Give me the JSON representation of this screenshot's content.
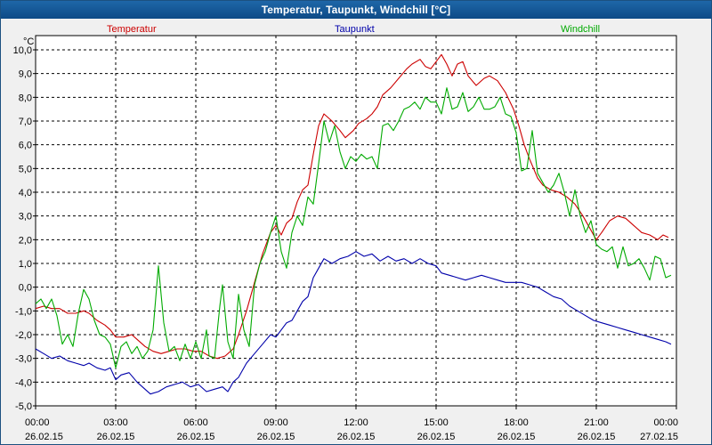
{
  "window": {
    "title": "Temperatur, Taupunkt, Windchill [°C]"
  },
  "chart_data": {
    "type": "line",
    "title": "Temperatur, Taupunkt, Windchill [°C]",
    "ylabel": "°C",
    "ylim": [
      -5,
      10
    ],
    "yticks": [
      10,
      9,
      8,
      7,
      6,
      5,
      4,
      3,
      2,
      1,
      0,
      -1,
      -2,
      -3,
      -4,
      -5
    ],
    "ytick_labels": [
      "10,0",
      "9,0",
      "8,0",
      "7,0",
      "6,0",
      "5,0",
      "4,0",
      "3,0",
      "2,0",
      "1,0",
      "0,0",
      "-1,0",
      "-2,0",
      "-3,0",
      "-4,0",
      "-5,0"
    ],
    "xlim": [
      0,
      24
    ],
    "xticks": [
      0,
      3,
      6,
      9,
      12,
      15,
      18,
      21,
      24
    ],
    "xtick_times": [
      "00:00",
      "03:00",
      "06:00",
      "09:00",
      "12:00",
      "15:00",
      "18:00",
      "21:00",
      "00:00"
    ],
    "xtick_dates": [
      "26.02.15",
      "26.02.15",
      "26.02.15",
      "26.02.15",
      "26.02.15",
      "26.02.15",
      "26.02.15",
      "26.02.15",
      "27.02.15"
    ],
    "grid": true,
    "series": [
      {
        "name": "Temperatur",
        "color": "#cc0000",
        "points": [
          [
            0,
            -0.9
          ],
          [
            0.3,
            -0.8
          ],
          [
            0.6,
            -0.9
          ],
          [
            0.9,
            -0.9
          ],
          [
            1.2,
            -1.1
          ],
          [
            1.5,
            -1.1
          ],
          [
            1.8,
            -1.0
          ],
          [
            2.0,
            -1.1
          ],
          [
            2.3,
            -1.4
          ],
          [
            2.6,
            -1.6
          ],
          [
            2.8,
            -1.8
          ],
          [
            3.0,
            -2.1
          ],
          [
            3.3,
            -2.1
          ],
          [
            3.6,
            -2.0
          ],
          [
            3.8,
            -2.2
          ],
          [
            4.1,
            -2.5
          ],
          [
            4.4,
            -2.7
          ],
          [
            4.7,
            -2.8
          ],
          [
            5.0,
            -2.7
          ],
          [
            5.3,
            -2.6
          ],
          [
            5.6,
            -2.6
          ],
          [
            5.9,
            -2.7
          ],
          [
            6.2,
            -2.7
          ],
          [
            6.5,
            -2.9
          ],
          [
            6.8,
            -3.0
          ],
          [
            7.1,
            -2.9
          ],
          [
            7.4,
            -2.6
          ],
          [
            7.6,
            -2.0
          ],
          [
            7.9,
            -1.0
          ],
          [
            8.2,
            0.2
          ],
          [
            8.5,
            1.4
          ],
          [
            8.8,
            2.3
          ],
          [
            9.0,
            2.6
          ],
          [
            9.2,
            2.2
          ],
          [
            9.4,
            2.7
          ],
          [
            9.6,
            2.9
          ],
          [
            9.8,
            3.6
          ],
          [
            10.0,
            4.1
          ],
          [
            10.2,
            4.3
          ],
          [
            10.4,
            5.6
          ],
          [
            10.6,
            6.8
          ],
          [
            10.8,
            7.3
          ],
          [
            11.1,
            7.0
          ],
          [
            11.4,
            6.6
          ],
          [
            11.6,
            6.3
          ],
          [
            11.9,
            6.6
          ],
          [
            12.1,
            6.9
          ],
          [
            12.4,
            7.1
          ],
          [
            12.6,
            7.3
          ],
          [
            12.8,
            7.6
          ],
          [
            13.0,
            8.1
          ],
          [
            13.3,
            8.4
          ],
          [
            13.6,
            8.8
          ],
          [
            13.9,
            9.2
          ],
          [
            14.1,
            9.4
          ],
          [
            14.4,
            9.6
          ],
          [
            14.6,
            9.3
          ],
          [
            14.8,
            9.2
          ],
          [
            15.0,
            9.5
          ],
          [
            15.2,
            9.8
          ],
          [
            15.4,
            9.4
          ],
          [
            15.6,
            8.9
          ],
          [
            15.8,
            9.4
          ],
          [
            16.0,
            9.5
          ],
          [
            16.2,
            8.9
          ],
          [
            16.5,
            8.5
          ],
          [
            16.8,
            8.8
          ],
          [
            17.0,
            8.9
          ],
          [
            17.3,
            8.7
          ],
          [
            17.6,
            8.2
          ],
          [
            17.9,
            7.5
          ],
          [
            18.1,
            6.8
          ],
          [
            18.3,
            6.0
          ],
          [
            18.5,
            5.4
          ],
          [
            18.8,
            4.6
          ],
          [
            19.0,
            4.3
          ],
          [
            19.3,
            4.1
          ],
          [
            19.6,
            4.0
          ],
          [
            19.9,
            3.8
          ],
          [
            20.2,
            3.5
          ],
          [
            20.5,
            3.0
          ],
          [
            20.8,
            2.4
          ],
          [
            21.0,
            2.0
          ],
          [
            21.2,
            2.3
          ],
          [
            21.5,
            2.8
          ],
          [
            21.8,
            3.0
          ],
          [
            22.1,
            2.9
          ],
          [
            22.4,
            2.6
          ],
          [
            22.7,
            2.3
          ],
          [
            23.0,
            2.2
          ],
          [
            23.3,
            2.0
          ],
          [
            23.5,
            2.2
          ],
          [
            23.7,
            2.1
          ]
        ]
      },
      {
        "name": "Taupunkt",
        "color": "#0000aa",
        "points": [
          [
            0,
            -2.6
          ],
          [
            0.3,
            -2.8
          ],
          [
            0.6,
            -3.0
          ],
          [
            0.9,
            -2.9
          ],
          [
            1.2,
            -3.1
          ],
          [
            1.5,
            -3.2
          ],
          [
            1.8,
            -3.3
          ],
          [
            2.0,
            -3.2
          ],
          [
            2.3,
            -3.4
          ],
          [
            2.6,
            -3.5
          ],
          [
            2.8,
            -3.4
          ],
          [
            3.0,
            -3.9
          ],
          [
            3.2,
            -3.7
          ],
          [
            3.5,
            -3.6
          ],
          [
            3.8,
            -4.0
          ],
          [
            4.0,
            -4.2
          ],
          [
            4.3,
            -4.5
          ],
          [
            4.6,
            -4.4
          ],
          [
            4.9,
            -4.2
          ],
          [
            5.2,
            -4.1
          ],
          [
            5.5,
            -4.0
          ],
          [
            5.8,
            -4.2
          ],
          [
            6.1,
            -4.1
          ],
          [
            6.4,
            -4.4
          ],
          [
            6.7,
            -4.3
          ],
          [
            7.0,
            -4.2
          ],
          [
            7.2,
            -4.4
          ],
          [
            7.4,
            -4.0
          ],
          [
            7.6,
            -3.8
          ],
          [
            7.9,
            -3.2
          ],
          [
            8.2,
            -2.8
          ],
          [
            8.5,
            -2.4
          ],
          [
            8.8,
            -2.0
          ],
          [
            9.0,
            -2.1
          ],
          [
            9.2,
            -1.8
          ],
          [
            9.4,
            -1.5
          ],
          [
            9.6,
            -1.4
          ],
          [
            9.8,
            -1.0
          ],
          [
            10.0,
            -0.6
          ],
          [
            10.2,
            -0.4
          ],
          [
            10.4,
            0.4
          ],
          [
            10.6,
            0.8
          ],
          [
            10.8,
            1.2
          ],
          [
            11.1,
            1.0
          ],
          [
            11.4,
            1.2
          ],
          [
            11.7,
            1.3
          ],
          [
            12.0,
            1.5
          ],
          [
            12.3,
            1.3
          ],
          [
            12.6,
            1.4
          ],
          [
            12.9,
            1.1
          ],
          [
            13.2,
            1.3
          ],
          [
            13.5,
            1.1
          ],
          [
            13.8,
            1.2
          ],
          [
            14.1,
            1.0
          ],
          [
            14.4,
            1.2
          ],
          [
            14.7,
            1.0
          ],
          [
            15.0,
            0.9
          ],
          [
            15.2,
            0.6
          ],
          [
            15.5,
            0.5
          ],
          [
            15.8,
            0.4
          ],
          [
            16.1,
            0.3
          ],
          [
            16.4,
            0.4
          ],
          [
            16.7,
            0.5
          ],
          [
            17.0,
            0.4
          ],
          [
            17.3,
            0.3
          ],
          [
            17.6,
            0.2
          ],
          [
            17.9,
            0.2
          ],
          [
            18.2,
            0.2
          ],
          [
            18.5,
            0.1
          ],
          [
            18.8,
            0.0
          ],
          [
            19.1,
            -0.2
          ],
          [
            19.4,
            -0.4
          ],
          [
            19.7,
            -0.5
          ],
          [
            20.0,
            -0.8
          ],
          [
            20.3,
            -1.0
          ],
          [
            20.6,
            -1.2
          ],
          [
            20.9,
            -1.4
          ],
          [
            21.2,
            -1.5
          ],
          [
            21.5,
            -1.6
          ],
          [
            21.8,
            -1.7
          ],
          [
            22.1,
            -1.8
          ],
          [
            22.4,
            -1.9
          ],
          [
            22.7,
            -2.0
          ],
          [
            23.0,
            -2.1
          ],
          [
            23.3,
            -2.2
          ],
          [
            23.6,
            -2.3
          ],
          [
            23.8,
            -2.4
          ]
        ]
      },
      {
        "name": "Windchill",
        "color": "#00aa00",
        "points": [
          [
            0,
            -0.7
          ],
          [
            0.2,
            -0.5
          ],
          [
            0.4,
            -0.9
          ],
          [
            0.6,
            -0.5
          ],
          [
            0.8,
            -1.2
          ],
          [
            1.0,
            -2.4
          ],
          [
            1.2,
            -2.0
          ],
          [
            1.4,
            -2.5
          ],
          [
            1.6,
            -1.1
          ],
          [
            1.8,
            -0.1
          ],
          [
            2.0,
            -0.5
          ],
          [
            2.2,
            -1.4
          ],
          [
            2.4,
            -2.0
          ],
          [
            2.6,
            -2.1
          ],
          [
            2.8,
            -2.4
          ],
          [
            3.0,
            -3.4
          ],
          [
            3.2,
            -2.5
          ],
          [
            3.4,
            -2.3
          ],
          [
            3.6,
            -2.8
          ],
          [
            3.8,
            -2.5
          ],
          [
            4.0,
            -3.0
          ],
          [
            4.2,
            -2.7
          ],
          [
            4.4,
            -1.8
          ],
          [
            4.6,
            0.9
          ],
          [
            4.8,
            -1.5
          ],
          [
            5.0,
            -2.7
          ],
          [
            5.2,
            -2.5
          ],
          [
            5.4,
            -3.1
          ],
          [
            5.6,
            -2.4
          ],
          [
            5.8,
            -3.0
          ],
          [
            6.0,
            -2.3
          ],
          [
            6.2,
            -3.0
          ],
          [
            6.4,
            -1.8
          ],
          [
            6.5,
            -2.9
          ],
          [
            6.7,
            -3.0
          ],
          [
            6.9,
            -0.8
          ],
          [
            7.0,
            0.1
          ],
          [
            7.2,
            -2.3
          ],
          [
            7.4,
            -3.0
          ],
          [
            7.6,
            -0.3
          ],
          [
            7.8,
            -1.8
          ],
          [
            8.0,
            -2.5
          ],
          [
            8.2,
            0.1
          ],
          [
            8.4,
            1.0
          ],
          [
            8.6,
            1.5
          ],
          [
            8.8,
            2.3
          ],
          [
            9.0,
            3.0
          ],
          [
            9.2,
            1.5
          ],
          [
            9.4,
            0.8
          ],
          [
            9.6,
            2.3
          ],
          [
            9.8,
            3.0
          ],
          [
            10.0,
            2.6
          ],
          [
            10.2,
            3.8
          ],
          [
            10.4,
            3.5
          ],
          [
            10.6,
            5.2
          ],
          [
            10.8,
            7.0
          ],
          [
            11.0,
            6.1
          ],
          [
            11.2,
            6.8
          ],
          [
            11.4,
            5.7
          ],
          [
            11.6,
            5.0
          ],
          [
            11.8,
            5.5
          ],
          [
            12.0,
            5.3
          ],
          [
            12.2,
            5.6
          ],
          [
            12.4,
            5.4
          ],
          [
            12.6,
            5.5
          ],
          [
            12.8,
            5.0
          ],
          [
            13.0,
            6.8
          ],
          [
            13.2,
            6.9
          ],
          [
            13.4,
            6.6
          ],
          [
            13.6,
            7.0
          ],
          [
            13.8,
            7.5
          ],
          [
            14.0,
            7.6
          ],
          [
            14.2,
            7.8
          ],
          [
            14.4,
            7.5
          ],
          [
            14.6,
            8.0
          ],
          [
            14.8,
            7.8
          ],
          [
            15.0,
            7.8
          ],
          [
            15.2,
            7.3
          ],
          [
            15.4,
            8.4
          ],
          [
            15.6,
            7.5
          ],
          [
            15.8,
            7.6
          ],
          [
            16.0,
            8.2
          ],
          [
            16.2,
            7.4
          ],
          [
            16.4,
            7.6
          ],
          [
            16.6,
            8.0
          ],
          [
            16.8,
            7.5
          ],
          [
            17.0,
            7.5
          ],
          [
            17.2,
            7.6
          ],
          [
            17.4,
            8.0
          ],
          [
            17.6,
            7.3
          ],
          [
            17.8,
            7.2
          ],
          [
            18.0,
            6.5
          ],
          [
            18.2,
            4.9
          ],
          [
            18.4,
            5.0
          ],
          [
            18.6,
            6.6
          ],
          [
            18.8,
            4.8
          ],
          [
            19.0,
            4.4
          ],
          [
            19.2,
            4.0
          ],
          [
            19.4,
            4.3
          ],
          [
            19.6,
            4.8
          ],
          [
            19.8,
            4.0
          ],
          [
            20.0,
            3.0
          ],
          [
            20.2,
            4.1
          ],
          [
            20.4,
            3.0
          ],
          [
            20.6,
            2.3
          ],
          [
            20.8,
            2.8
          ],
          [
            21.0,
            1.8
          ],
          [
            21.2,
            1.6
          ],
          [
            21.4,
            1.5
          ],
          [
            21.6,
            1.7
          ],
          [
            21.8,
            0.8
          ],
          [
            22.0,
            1.7
          ],
          [
            22.2,
            0.9
          ],
          [
            22.4,
            1.0
          ],
          [
            22.6,
            1.2
          ],
          [
            22.8,
            0.8
          ],
          [
            23.0,
            0.3
          ],
          [
            23.2,
            1.3
          ],
          [
            23.4,
            1.2
          ],
          [
            23.6,
            0.4
          ],
          [
            23.8,
            0.5
          ]
        ]
      }
    ]
  }
}
